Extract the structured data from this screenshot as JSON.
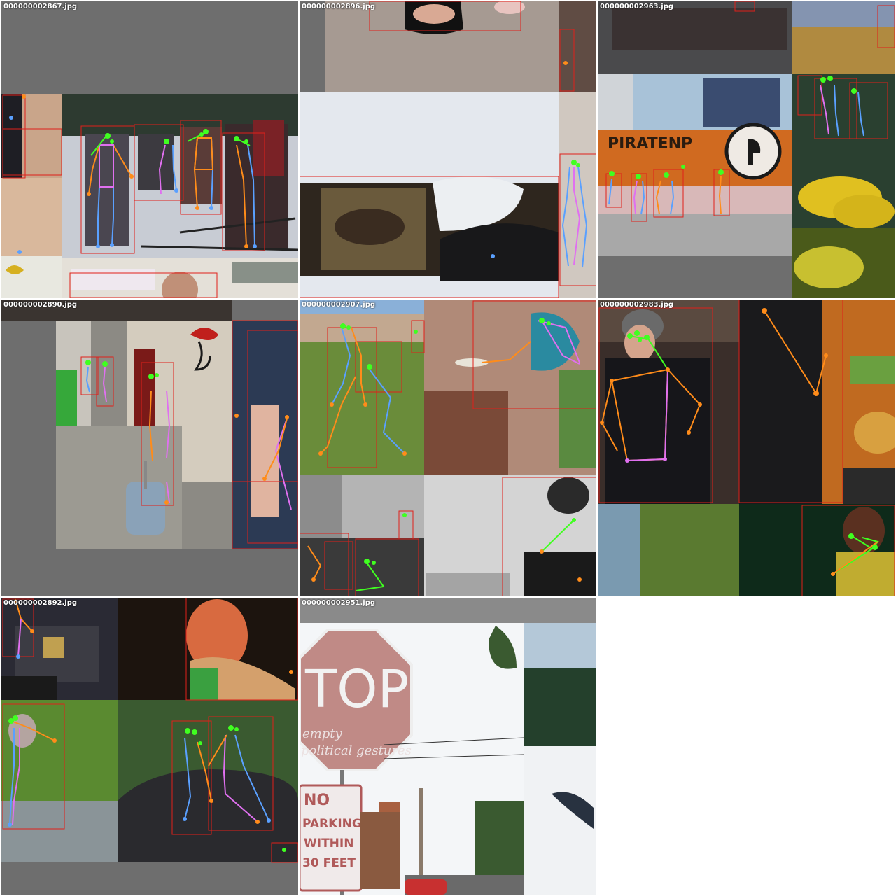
{
  "grid": {
    "cells": [
      {
        "file": "000000002867.jpg"
      },
      {
        "file": "000000002896.jpg"
      },
      {
        "file": "000000002963.jpg"
      },
      {
        "file": "000000002890.jpg"
      },
      {
        "file": "000000002907.jpg"
      },
      {
        "file": "000000002983.jpg"
      },
      {
        "file": "000000002892.jpg"
      },
      {
        "file": "000000002951.jpg"
      }
    ]
  },
  "signs": {
    "stop": "TOP",
    "graffiti_1": "empty",
    "graffiti_2": "political gestures",
    "no": "NO",
    "parking": "PARKING",
    "within": "WITHIN",
    "feet": "30 FEET"
  },
  "bus": {
    "banner": "PIRATENP"
  },
  "colors": {
    "box": "#e0201a",
    "limb_left": "#ff8c1a",
    "limb_right": "#5aa0ff",
    "torso": "#e070f0",
    "head": "#40ff20",
    "background_fill": "#6e6e6e"
  }
}
